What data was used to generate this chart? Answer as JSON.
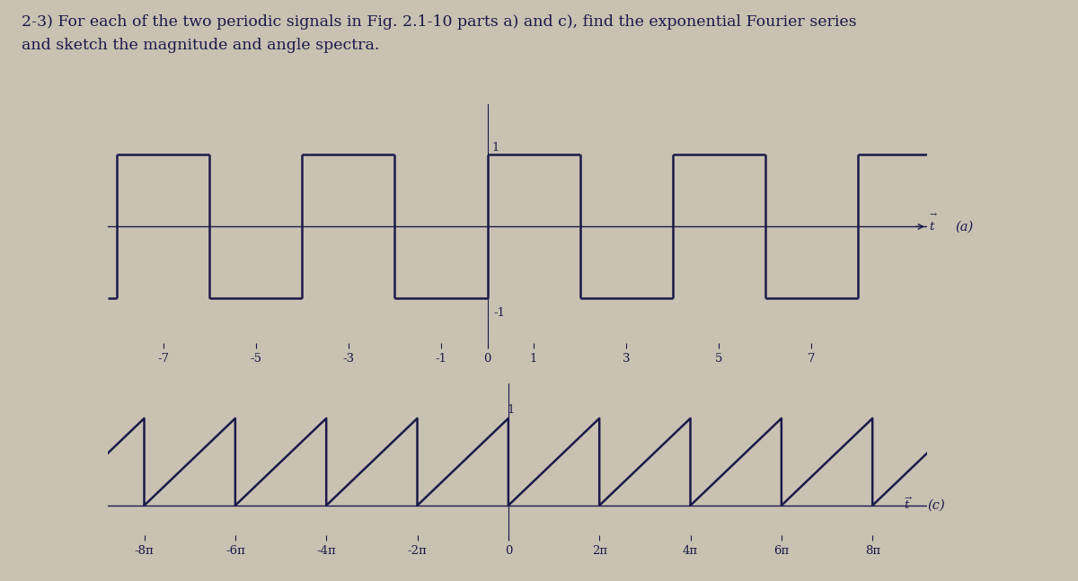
{
  "title_line1": "2-3) For each of the two periodic signals in Fig. 2.1-10 parts a) and c), find the exponential Fourier series",
  "title_line2": "and sketch the magnitude and angle spectra.",
  "title_fontsize": 12.5,
  "bg_color": "#c9c1b2",
  "line_color": "#1a1a4a",
  "axis_color": "#1a1a4a",
  "text_color": "#1a1a4a",
  "label_a": "(a)",
  "label_c": "(c)",
  "signal_a_xlim": [
    -8.2,
    9.5
  ],
  "signal_a_ylim": [
    -1.7,
    1.7
  ],
  "signal_a_xticks": [
    -7,
    -5,
    -3,
    -1,
    0,
    1,
    3,
    5,
    7
  ],
  "signal_c_ylim": [
    -0.4,
    1.4
  ],
  "signal_c_xtick_labels": [
    "-8π",
    "-6π",
    "-4π",
    "-2π",
    "0",
    "2π",
    "4π",
    "6π",
    "8π"
  ]
}
